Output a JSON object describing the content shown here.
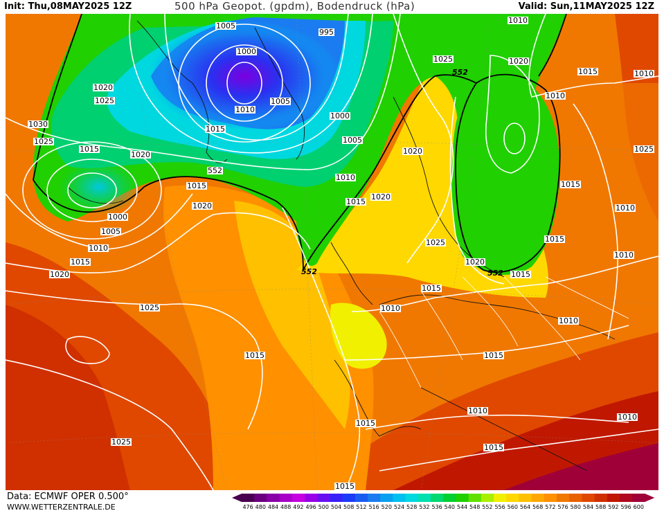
{
  "header": {
    "init": "Init: Thu,08MAY2025 12Z",
    "title": "500 hPa Geopot. (gpdm), Bodendruck (hPa)",
    "valid": "Valid: Sun,11MAY2025 12Z"
  },
  "footer": {
    "data_source": "Data: ECMWF OPER 0.500°",
    "url": "WWW.WETTERZENTRALE.DE"
  },
  "legend": {
    "values": [
      "476",
      "480",
      "484",
      "488",
      "492",
      "496",
      "500",
      "504",
      "508",
      "512",
      "516",
      "520",
      "524",
      "528",
      "532",
      "536",
      "540",
      "544",
      "548",
      "552",
      "556",
      "560",
      "564",
      "568",
      "572",
      "576",
      "580",
      "584",
      "588",
      "592",
      "596",
      "600"
    ],
    "colors": [
      "#4a0050",
      "#6a0080",
      "#8a00a8",
      "#a800c8",
      "#c600e0",
      "#9a00e8",
      "#6a10f0",
      "#3a20f8",
      "#1a3cf8",
      "#1a5cf0",
      "#1a7cf0",
      "#0aa0f0",
      "#00c0f0",
      "#00d8e0",
      "#00e0b0",
      "#00d870",
      "#00d030",
      "#20d000",
      "#60e000",
      "#a8f000",
      "#f0f000",
      "#ffd800",
      "#ffc000",
      "#ffa800",
      "#ff9000",
      "#f07800",
      "#e86000",
      "#e04800",
      "#d03000",
      "#c01800",
      "#b00820",
      "#a00038"
    ]
  },
  "isobar_labels": [
    "1005",
    "995",
    "1000",
    "1020",
    "1025",
    "1010",
    "1005",
    "1015",
    "1030",
    "1025",
    "1015",
    "1020",
    "1000",
    "1005",
    "552",
    "1010",
    "1015",
    "1020",
    "1000",
    "1005",
    "1010",
    "1015",
    "1020",
    "1010",
    "1015",
    "1020",
    "1025",
    "1020",
    "1015",
    "1010",
    "1020",
    "1025",
    "1025",
    "1020",
    "1015",
    "1010",
    "1015",
    "1015",
    "1010",
    "1010",
    "1015",
    "1010",
    "1015",
    "1015",
    "1025",
    "1015",
    "1010",
    "1010",
    "1015",
    "1015",
    "1010",
    "1025",
    "1020",
    "552",
    "1010",
    "1015",
    "1010",
    "1015",
    "1015"
  ],
  "geo_labels": [
    "552",
    "552",
    "552",
    "552"
  ]
}
